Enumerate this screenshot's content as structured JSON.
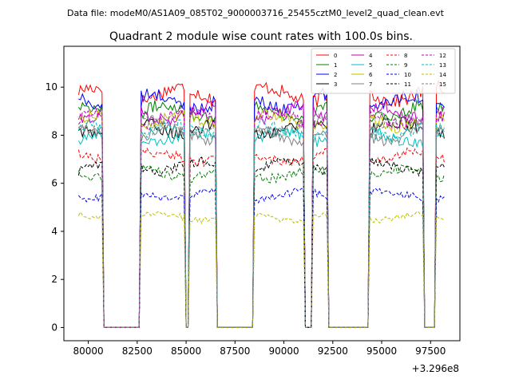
{
  "header": {
    "datafile": "Data file: modeM0/AS1A09_085T02_9000003716_25455cztM0_level2_quad_clean.evt"
  },
  "chart_data": {
    "type": "line",
    "title": "Quadrant 2 module wise count rates with 100.0s bins.",
    "xlabel": "",
    "ylabel": "",
    "x_offset_label": "+3.296e8",
    "xlim": [
      78750,
      99000
    ],
    "ylim": [
      -0.55,
      11.7
    ],
    "xticks": [
      80000,
      82500,
      85000,
      87500,
      90000,
      92500,
      95000,
      97500
    ],
    "xtick_labels": [
      "80000",
      "82500",
      "85000",
      "87500",
      "90000",
      "92500",
      "95000",
      "97500"
    ],
    "yticks": [
      0,
      2,
      4,
      6,
      8,
      10
    ],
    "ytick_labels": [
      "0",
      "2",
      "4",
      "6",
      "8",
      "10"
    ],
    "legend_position": "top-right",
    "segments": [
      {
        "start": 79500,
        "end": 80700
      },
      {
        "start": 82700,
        "end": 84900
      },
      {
        "start": 85200,
        "end": 86500
      },
      {
        "start": 88500,
        "end": 91000
      },
      {
        "start": 91500,
        "end": 92200
      },
      {
        "start": 94400,
        "end": 97100
      },
      {
        "start": 97800,
        "end": 98200
      }
    ],
    "gap_level": 0,
    "series": [
      {
        "name": "0",
        "color": "#ff0000",
        "dash": false,
        "level": 9.7
      },
      {
        "name": "1",
        "color": "#008000",
        "dash": false,
        "level": 9.0
      },
      {
        "name": "2",
        "color": "#0000ff",
        "dash": false,
        "level": 9.4
      },
      {
        "name": "3",
        "color": "#000000",
        "dash": false,
        "level": 8.3
      },
      {
        "name": "4",
        "color": "#bf00bf",
        "dash": false,
        "level": 8.9
      },
      {
        "name": "5",
        "color": "#00bfbf",
        "dash": false,
        "level": 7.9
      },
      {
        "name": "6",
        "color": "#bfbf00",
        "dash": false,
        "level": 8.6
      },
      {
        "name": "7",
        "color": "#808080",
        "dash": false,
        "level": 8.0
      },
      {
        "name": "8",
        "color": "#ff0000",
        "dash": true,
        "level": 7.1
      },
      {
        "name": "9",
        "color": "#008000",
        "dash": true,
        "level": 6.4
      },
      {
        "name": "10",
        "color": "#0000ff",
        "dash": true,
        "level": 5.5
      },
      {
        "name": "11",
        "color": "#000000",
        "dash": true,
        "level": 6.7
      },
      {
        "name": "12",
        "color": "#bf00bf",
        "dash": true,
        "level": 8.7
      },
      {
        "name": "13",
        "color": "#00bfbf",
        "dash": true,
        "level": 8.2
      },
      {
        "name": "14",
        "color": "#bfbf00",
        "dash": true,
        "level": 4.6
      },
      {
        "name": "15",
        "color": "#808080",
        "dash": true,
        "level": 8.4
      }
    ]
  }
}
